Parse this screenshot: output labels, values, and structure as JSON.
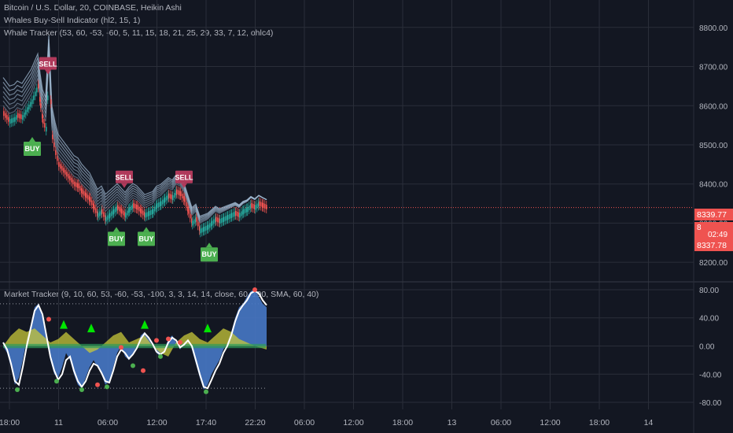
{
  "chart_data": [
    {
      "type": "candlestick",
      "title": "Bitcoin / U.S. Dollar, 20, COINBASE, Heikin Ashi",
      "indicators": [
        "Whales Buy-Sell Indicator (hl2, 15, 1)",
        "Whale Tracker (53, 60, -53, -60, 5, 11, 15, 18, 21, 25, 29, 33, 7, 12, ohlc4)"
      ],
      "ylim": [
        8150,
        8870
      ],
      "y_ticks": [
        8200,
        8300,
        8400,
        8500,
        8600,
        8700,
        8800
      ],
      "y_tick_labels": [
        "8200.00",
        "8300.00",
        "8400.00",
        "8500.00",
        "8600.00",
        "8700.00",
        "8800.00"
      ],
      "last_price": 8339.77,
      "price_tag_top": "8339.77",
      "price_tag_mid_price": "8",
      "price_tag_mid_time": "02:49",
      "price_tag_bottom": "8337.78",
      "price_series": [
        [
          0,
          8580
        ],
        [
          4,
          8570
        ],
        [
          8,
          8560
        ],
        [
          14,
          8565
        ],
        [
          18,
          8575
        ],
        [
          24,
          8570
        ],
        [
          30,
          8590
        ],
        [
          36,
          8610
        ],
        [
          40,
          8630
        ],
        [
          44,
          8650
        ],
        [
          47,
          8600
        ],
        [
          50,
          8560
        ],
        [
          54,
          8540
        ],
        [
          58,
          8700
        ],
        [
          62,
          8520
        ],
        [
          66,
          8480
        ],
        [
          70,
          8450
        ],
        [
          74,
          8440
        ],
        [
          78,
          8430
        ],
        [
          82,
          8420
        ],
        [
          86,
          8410
        ],
        [
          90,
          8400
        ],
        [
          95,
          8395
        ],
        [
          100,
          8380
        ],
        [
          105,
          8370
        ],
        [
          110,
          8360
        ],
        [
          115,
          8340
        ],
        [
          120,
          8320
        ],
        [
          125,
          8330
        ],
        [
          130,
          8310
        ],
        [
          135,
          8320
        ],
        [
          140,
          8330
        ],
        [
          145,
          8340
        ],
        [
          150,
          8330
        ],
        [
          155,
          8320
        ],
        [
          160,
          8335
        ],
        [
          165,
          8345
        ],
        [
          170,
          8340
        ],
        [
          175,
          8330
        ],
        [
          180,
          8320
        ],
        [
          185,
          8325
        ],
        [
          190,
          8330
        ],
        [
          195,
          8345
        ],
        [
          200,
          8350
        ],
        [
          205,
          8360
        ],
        [
          210,
          8370
        ],
        [
          215,
          8365
        ],
        [
          220,
          8380
        ],
        [
          225,
          8375
        ],
        [
          230,
          8360
        ],
        [
          235,
          8330
        ],
        [
          240,
          8300
        ],
        [
          245,
          8310
        ],
        [
          250,
          8280
        ],
        [
          255,
          8285
        ],
        [
          260,
          8290
        ],
        [
          265,
          8300
        ],
        [
          270,
          8310
        ],
        [
          275,
          8305
        ],
        [
          280,
          8310
        ],
        [
          285,
          8315
        ],
        [
          290,
          8320
        ],
        [
          295,
          8325
        ],
        [
          300,
          8320
        ],
        [
          305,
          8330
        ],
        [
          310,
          8335
        ],
        [
          315,
          8345
        ],
        [
          320,
          8340
        ],
        [
          325,
          8350
        ],
        [
          330,
          8345
        ],
        [
          335,
          8340
        ]
      ],
      "ma_ribbon_offsets": [
        0,
        15,
        30,
        45,
        60,
        75,
        90
      ],
      "signals": [
        {
          "label": "SELL",
          "x": 57,
          "price": 8700
        },
        {
          "label": "BUY",
          "x": 37,
          "price": 8500
        },
        {
          "label": "SELL",
          "x": 154,
          "price": 8410
        },
        {
          "label": "SELL",
          "x": 230,
          "price": 8410
        },
        {
          "label": "BUY",
          "x": 144,
          "price": 8270
        },
        {
          "label": "BUY",
          "x": 182,
          "price": 8270
        },
        {
          "label": "BUY",
          "x": 262,
          "price": 8230
        }
      ],
      "colors": {
        "up": "#26a69a",
        "down": "#ef5350",
        "sell": "#b03a5b",
        "buy": "#4caf50",
        "ribbon": "#9fb8d0",
        "price_line": "#ef5350",
        "background": "#131722",
        "grid": "#2a2e39"
      }
    },
    {
      "type": "area",
      "title": "Market Tracker (9, 10, 60, 53, -60, -53, -100, 3, 3, 14, 14, close, 60, 190, SMA, 60, 40)",
      "ylim": [
        -90,
        90
      ],
      "y_ticks": [
        -80,
        -40,
        0,
        40,
        80
      ],
      "y_tick_labels": [
        "-80.00",
        "-40.00",
        "0.00",
        "40.00",
        "80.00"
      ],
      "overbought": 60,
      "oversold": -60,
      "wave": [
        [
          0,
          0
        ],
        [
          5,
          -10
        ],
        [
          10,
          -30
        ],
        [
          15,
          -55
        ],
        [
          20,
          -45
        ],
        [
          25,
          -20
        ],
        [
          30,
          10
        ],
        [
          35,
          30
        ],
        [
          40,
          55
        ],
        [
          45,
          60
        ],
        [
          50,
          40
        ],
        [
          55,
          10
        ],
        [
          60,
          -20
        ],
        [
          65,
          -40
        ],
        [
          70,
          -45
        ],
        [
          75,
          -30
        ],
        [
          80,
          -10
        ],
        [
          85,
          -20
        ],
        [
          90,
          -40
        ],
        [
          95,
          -55
        ],
        [
          100,
          -60
        ],
        [
          105,
          -45
        ],
        [
          110,
          -30
        ],
        [
          115,
          -20
        ],
        [
          120,
          -30
        ],
        [
          125,
          -40
        ],
        [
          130,
          -55
        ],
        [
          135,
          -50
        ],
        [
          140,
          -30
        ],
        [
          145,
          -10
        ],
        [
          150,
          0
        ],
        [
          155,
          -15
        ],
        [
          160,
          -20
        ],
        [
          165,
          -10
        ],
        [
          170,
          0
        ],
        [
          175,
          15
        ],
        [
          180,
          20
        ],
        [
          185,
          10
        ],
        [
          190,
          0
        ],
        [
          195,
          -10
        ],
        [
          200,
          -15
        ],
        [
          205,
          -5
        ],
        [
          210,
          10
        ],
        [
          215,
          15
        ],
        [
          220,
          5
        ],
        [
          225,
          -5
        ],
        [
          230,
          5
        ],
        [
          235,
          10
        ],
        [
          240,
          -5
        ],
        [
          245,
          -25
        ],
        [
          250,
          -45
        ],
        [
          255,
          -62
        ],
        [
          260,
          -55
        ],
        [
          265,
          -40
        ],
        [
          270,
          -30
        ],
        [
          275,
          -20
        ],
        [
          280,
          -5
        ],
        [
          285,
          5
        ],
        [
          290,
          20
        ],
        [
          295,
          40
        ],
        [
          300,
          55
        ],
        [
          305,
          60
        ],
        [
          310,
          70
        ],
        [
          315,
          78
        ],
        [
          320,
          80
        ],
        [
          325,
          70
        ],
        [
          330,
          60
        ],
        [
          335,
          55
        ]
      ],
      "momentum": [
        [
          0,
          0
        ],
        [
          10,
          15
        ],
        [
          20,
          25
        ],
        [
          30,
          20
        ],
        [
          40,
          25
        ],
        [
          50,
          15
        ],
        [
          60,
          5
        ],
        [
          70,
          10
        ],
        [
          80,
          20
        ],
        [
          90,
          10
        ],
        [
          100,
          0
        ],
        [
          110,
          -10
        ],
        [
          120,
          -5
        ],
        [
          130,
          5
        ],
        [
          140,
          15
        ],
        [
          150,
          20
        ],
        [
          160,
          5
        ],
        [
          170,
          10
        ],
        [
          180,
          15
        ],
        [
          190,
          0
        ],
        [
          200,
          -10
        ],
        [
          210,
          -15
        ],
        [
          220,
          5
        ],
        [
          230,
          15
        ],
        [
          240,
          20
        ],
        [
          250,
          10
        ],
        [
          260,
          5
        ],
        [
          270,
          15
        ],
        [
          280,
          25
        ],
        [
          290,
          20
        ],
        [
          300,
          10
        ],
        [
          310,
          5
        ],
        [
          320,
          0
        ],
        [
          335,
          -5
        ]
      ],
      "line": [
        [
          0,
          5
        ],
        [
          5,
          -5
        ],
        [
          10,
          -25
        ],
        [
          15,
          -50
        ],
        [
          20,
          -55
        ],
        [
          25,
          -30
        ],
        [
          30,
          0
        ],
        [
          35,
          25
        ],
        [
          40,
          50
        ],
        [
          45,
          58
        ],
        [
          50,
          45
        ],
        [
          55,
          15
        ],
        [
          60,
          -15
        ],
        [
          65,
          -35
        ],
        [
          70,
          -48
        ],
        [
          75,
          -40
        ],
        [
          80,
          -20
        ],
        [
          85,
          -15
        ],
        [
          90,
          -35
        ],
        [
          95,
          -50
        ],
        [
          100,
          -58
        ],
        [
          105,
          -50
        ],
        [
          110,
          -35
        ],
        [
          115,
          -25
        ],
        [
          120,
          -28
        ],
        [
          125,
          -38
        ],
        [
          130,
          -50
        ],
        [
          135,
          -52
        ],
        [
          140,
          -35
        ],
        [
          145,
          -15
        ],
        [
          150,
          -5
        ],
        [
          155,
          -10
        ],
        [
          160,
          -18
        ],
        [
          165,
          -12
        ],
        [
          170,
          -3
        ],
        [
          175,
          10
        ],
        [
          180,
          18
        ],
        [
          185,
          12
        ],
        [
          190,
          3
        ],
        [
          195,
          -8
        ],
        [
          200,
          -12
        ],
        [
          205,
          -8
        ],
        [
          210,
          5
        ],
        [
          215,
          12
        ],
        [
          220,
          8
        ],
        [
          225,
          -2
        ],
        [
          230,
          2
        ],
        [
          235,
          8
        ],
        [
          240,
          0
        ],
        [
          245,
          -20
        ],
        [
          250,
          -40
        ],
        [
          255,
          -58
        ],
        [
          260,
          -60
        ],
        [
          265,
          -48
        ],
        [
          270,
          -35
        ],
        [
          275,
          -25
        ],
        [
          280,
          -10
        ],
        [
          285,
          0
        ],
        [
          290,
          15
        ],
        [
          295,
          35
        ],
        [
          300,
          50
        ],
        [
          305,
          58
        ],
        [
          310,
          65
        ],
        [
          315,
          75
        ],
        [
          320,
          78
        ],
        [
          325,
          75
        ],
        [
          330,
          65
        ],
        [
          335,
          58
        ]
      ],
      "signals": [
        {
          "type": "up",
          "x": 77,
          "value": 30
        },
        {
          "type": "up",
          "x": 112,
          "value": 25
        },
        {
          "type": "up",
          "x": 180,
          "value": 30
        },
        {
          "type": "up",
          "x": 260,
          "value": 25
        }
      ],
      "dots": [
        {
          "x": 18,
          "value": -62,
          "color": "#4caf50"
        },
        {
          "x": 58,
          "value": 38,
          "color": "#ef5350"
        },
        {
          "x": 68,
          "value": -50,
          "color": "#4caf50"
        },
        {
          "x": 100,
          "value": -62,
          "color": "#4caf50"
        },
        {
          "x": 120,
          "value": -55,
          "color": "#ef5350"
        },
        {
          "x": 132,
          "value": -58,
          "color": "#4caf50"
        },
        {
          "x": 150,
          "value": -2,
          "color": "#ef5350"
        },
        {
          "x": 165,
          "value": -28,
          "color": "#4caf50"
        },
        {
          "x": 178,
          "value": -35,
          "color": "#ef5350"
        },
        {
          "x": 195,
          "value": 8,
          "color": "#ef5350"
        },
        {
          "x": 200,
          "value": -15,
          "color": "#4caf50"
        },
        {
          "x": 210,
          "value": 10,
          "color": "#ef5350"
        },
        {
          "x": 225,
          "value": 5,
          "color": "#ef5350"
        },
        {
          "x": 258,
          "value": -65,
          "color": "#4caf50"
        },
        {
          "x": 320,
          "value": 80,
          "color": "#ef5350"
        }
      ],
      "colors": {
        "wave": "#4778c5",
        "momentum": "#c8c83a",
        "line": "#ffffff",
        "neg": "#ef5350",
        "pos": "#2e9b5a",
        "signal": "#00e600"
      }
    }
  ],
  "time_axis": {
    "labels": [
      "18:00",
      "11",
      "06:00",
      "12:00",
      "17:40",
      "22:20",
      "06:00",
      "12:00",
      "18:00",
      "13",
      "06:00",
      "12:00",
      "18:00",
      "14"
    ]
  }
}
